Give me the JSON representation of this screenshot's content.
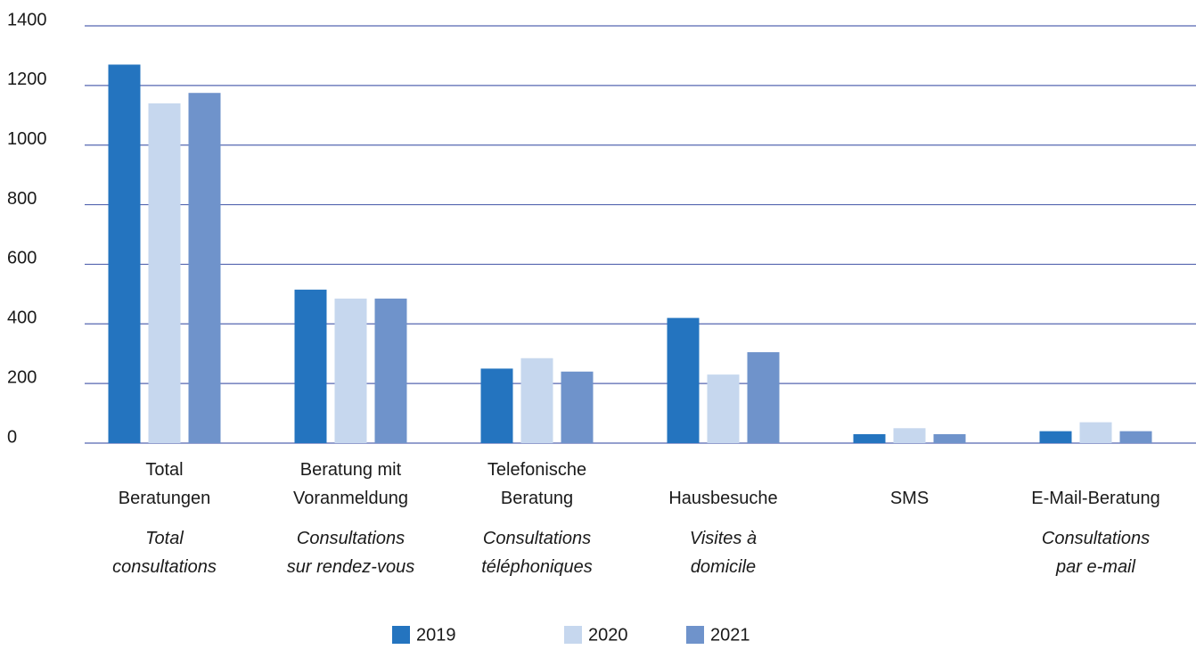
{
  "chart_data": {
    "type": "bar",
    "categories": [
      "Total\nBeratungen",
      "Beratung mit\nVoranmeldung",
      "Telefonische\nBeratung",
      "Hausbesuche",
      "SMS",
      "E-Mail-Beratung"
    ],
    "categories_fr": [
      "Total\nconsultations",
      "Consultations\nsur rendez-vous",
      "Consultations\ntéléphoniques",
      "Visites à\ndomicile",
      null,
      "Consultations\npar e-mail"
    ],
    "series": [
      {
        "name": "2019",
        "color": "#2474bf",
        "values": [
          1270,
          515,
          250,
          420,
          30,
          40
        ]
      },
      {
        "name": "2020",
        "color": "#c6d7ee",
        "values": [
          1140,
          485,
          285,
          230,
          50,
          70
        ]
      },
      {
        "name": "2021",
        "color": "#6f93cb",
        "values": [
          1175,
          485,
          240,
          305,
          30,
          40
        ]
      }
    ],
    "ylim": [
      0,
      1400
    ],
    "yticks": [
      0,
      200,
      400,
      600,
      800,
      1000,
      1200,
      1400
    ],
    "grid": true
  }
}
